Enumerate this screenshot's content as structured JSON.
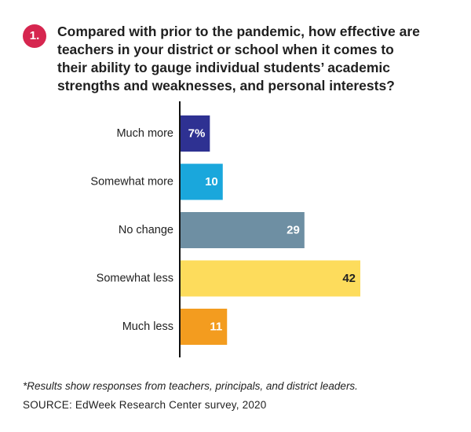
{
  "badge": "1.",
  "question": "Compared with prior to the pandemic, how effective are teachers in your district or school when it comes to their ability to gauge individual students’ academic strengths and weaknesses, and personal interests?",
  "footnote": "*Results show responses from teachers, principals, and district leaders.",
  "source": "SOURCE: EdWeek Research Center survey, 2020",
  "chart_data": {
    "type": "bar",
    "orientation": "horizontal",
    "categories": [
      "Much more",
      "Somewhat more",
      "No change",
      "Somewhat less",
      "Much less"
    ],
    "values": [
      7,
      10,
      29,
      42,
      11
    ],
    "value_labels": [
      "7%",
      "10",
      "29",
      "42",
      "11"
    ],
    "colors": [
      "#2e3192",
      "#1aa7dc",
      "#6e8fa3",
      "#fddc5c",
      "#f39c1f"
    ],
    "label_colors": [
      "#ffffff",
      "#ffffff",
      "#ffffff",
      "#222222",
      "#ffffff"
    ],
    "xlim": [
      0,
      42
    ],
    "grid": false
  }
}
